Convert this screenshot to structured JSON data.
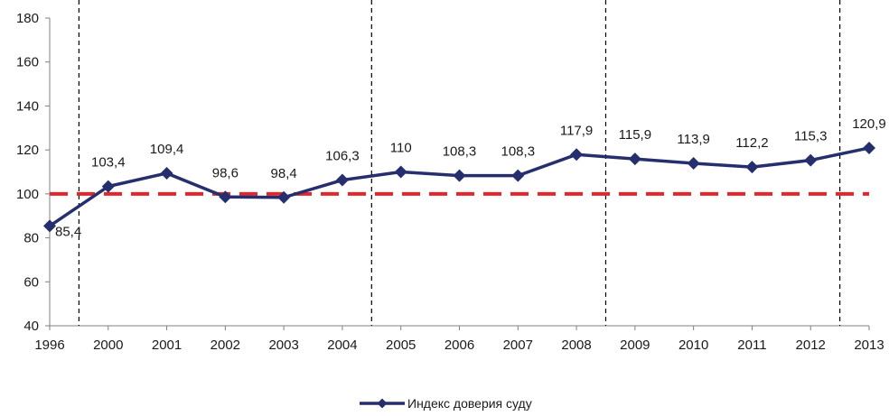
{
  "chart_data": {
    "type": "line",
    "categories": [
      "1996",
      "2000",
      "2001",
      "2002",
      "2003",
      "2004",
      "2005",
      "2006",
      "2007",
      "2008",
      "2009",
      "2010",
      "2011",
      "2012",
      "2013"
    ],
    "series": [
      {
        "name": "Индекс доверия суду",
        "values": [
          85.4,
          103.4,
          109.4,
          98.6,
          98.4,
          106.3,
          110,
          108.3,
          108.3,
          117.9,
          115.9,
          113.9,
          112.2,
          115.3,
          120.9
        ],
        "labels": [
          "85,4",
          "103,4",
          "109,4",
          "98,6",
          "98,4",
          "106,3",
          "110",
          "108,3",
          "108,3",
          "117,9",
          "115,9",
          "113,9",
          "112,2",
          "115,3",
          "120,9"
        ]
      }
    ],
    "ylim": [
      40,
      180
    ],
    "yticks": [
      40,
      60,
      80,
      100,
      120,
      140,
      160,
      180
    ],
    "reference_line": {
      "value": 100
    },
    "period_separators_after": [
      "1996",
      "2004",
      "2008",
      "2012"
    ],
    "legend_position": "bottom-center",
    "colors": {
      "series": "#262f6e",
      "reference": "#e3262c",
      "separators": "#000000",
      "axis": "#808080"
    }
  }
}
